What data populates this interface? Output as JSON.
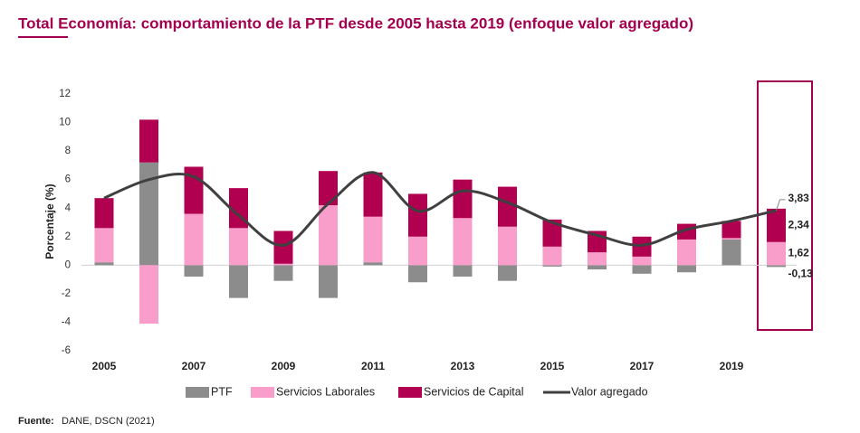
{
  "chart_data": {
    "type": "stacked-bar-line",
    "title": "Total Economía: comportamiento de la PTF desde 2005 hasta 2019 (enfoque valor agregado)",
    "y_label": "Porcentaje (%)",
    "source_label": "Fuente:",
    "source": "DANE, DSCN (2021)",
    "categories": [
      "2005",
      null,
      "2007",
      null,
      "2009",
      null,
      "2011",
      null,
      "2013",
      null,
      "2015",
      null,
      "2017",
      null,
      "2019",
      null
    ],
    "series": [
      {
        "name": "PTF",
        "color": "#8c8c8c",
        "kind": "bar",
        "values": [
          0.2,
          7.2,
          -0.8,
          -2.3,
          -1.1,
          -2.3,
          0.2,
          -1.2,
          -0.8,
          -1.1,
          -0.1,
          -0.3,
          -0.6,
          -0.5,
          1.8,
          -0.13
        ],
        "value_labels": [
          null,
          null,
          null,
          null,
          null,
          null,
          null,
          null,
          null,
          null,
          null,
          null,
          null,
          null,
          null,
          "-0,13"
        ]
      },
      {
        "name": "Servicios Laborales",
        "color": "#f99dcb",
        "kind": "bar",
        "values": [
          2.4,
          -4.1,
          3.6,
          2.6,
          0.1,
          4.2,
          3.2,
          2.0,
          3.3,
          2.7,
          1.3,
          0.9,
          0.6,
          1.8,
          0.1,
          1.62
        ],
        "value_labels": [
          null,
          null,
          null,
          null,
          null,
          null,
          null,
          null,
          null,
          null,
          null,
          null,
          null,
          null,
          null,
          "1,62"
        ]
      },
      {
        "name": "Servicios de Capital",
        "color": "#b0004f",
        "kind": "bar",
        "values": [
          2.1,
          3.0,
          3.3,
          2.8,
          2.3,
          2.4,
          3.1,
          3.0,
          2.7,
          2.8,
          1.9,
          1.5,
          1.4,
          1.1,
          1.2,
          2.34
        ],
        "value_labels": [
          null,
          null,
          null,
          null,
          null,
          null,
          null,
          null,
          null,
          null,
          null,
          null,
          null,
          null,
          null,
          "2,34"
        ]
      },
      {
        "name": "Valor agregado",
        "color": "#404040",
        "kind": "line",
        "values": [
          4.7,
          6.0,
          6.2,
          3.5,
          1.4,
          4.3,
          6.5,
          3.8,
          5.2,
          4.4,
          3.0,
          2.1,
          1.4,
          2.5,
          3.1,
          3.83
        ],
        "value_labels": [
          null,
          null,
          null,
          null,
          null,
          null,
          null,
          null,
          null,
          null,
          null,
          null,
          null,
          null,
          null,
          "3,83"
        ]
      }
    ],
    "ylim": [
      -6,
      12
    ],
    "yticks": [
      -6,
      -4,
      -2,
      0,
      2,
      4,
      6,
      8,
      10,
      12
    ],
    "grid": false
  }
}
